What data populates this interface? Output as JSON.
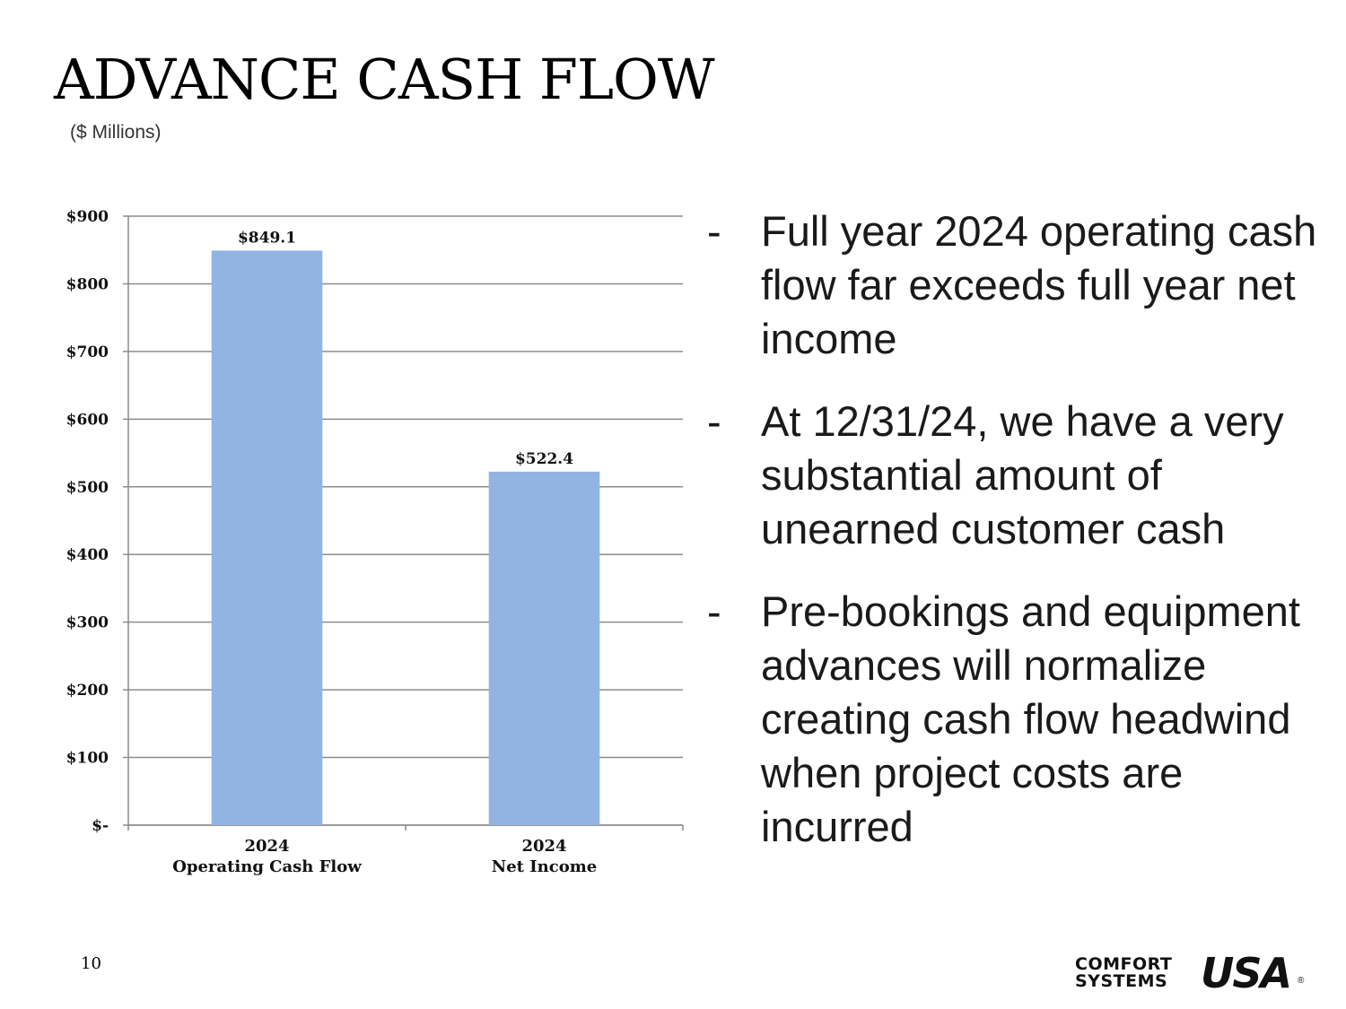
{
  "slide": {
    "title": "ADVANCE CASH FLOW",
    "subtitle": "($ Millions)",
    "page_number": "10",
    "bullets": [
      "Full year 2024 operating cash flow far exceeds full year net income",
      "At 12/31/24, we have a very substantial amount of unearned customer cash",
      "Pre-bookings and equipment advances will normalize creating cash flow headwind when project costs are incurred"
    ],
    "bullet_marker": "-"
  },
  "logo": {
    "line1": "COMFORT",
    "line2": "SYSTEMS",
    "mark": "USA",
    "registered": "®"
  },
  "chart_data": {
    "type": "bar",
    "categories": [
      [
        "2024",
        "Operating Cash Flow"
      ],
      [
        "2024",
        "Net Income"
      ]
    ],
    "values": [
      849.1,
      522.4
    ],
    "data_labels": [
      "$849.1",
      "$522.4"
    ],
    "yticks": [
      0,
      100,
      200,
      300,
      400,
      500,
      600,
      700,
      800,
      900
    ],
    "ytick_labels": [
      "$-",
      "$100",
      "$200",
      "$300",
      "$400",
      "$500",
      "$600",
      "$700",
      "$800",
      "$900"
    ],
    "ylim": [
      0,
      900
    ],
    "grid": true,
    "legend": "none",
    "bar_color": "#91b4e3"
  }
}
